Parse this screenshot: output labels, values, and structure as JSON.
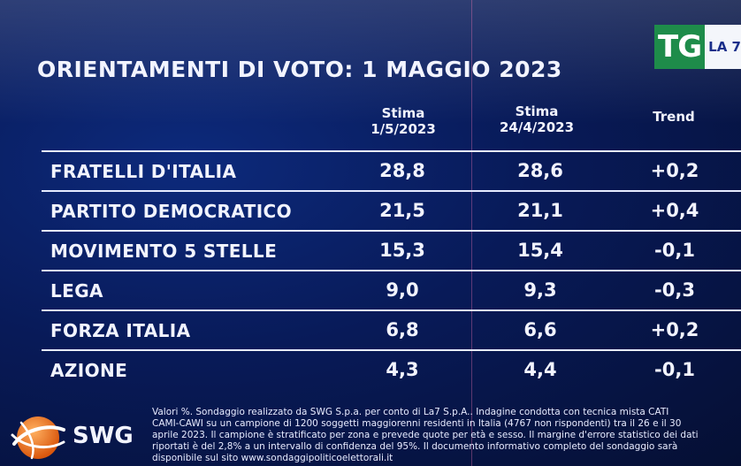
{
  "title": "ORIENTAMENTI DI VOTO: 1 MAGGIO 2023",
  "logo": {
    "tg": "TG",
    "la7": "LA 7"
  },
  "columns": {
    "c1_l1": "Stima",
    "c1_l2": "1/5/2023",
    "c2_l1": "Stima",
    "c2_l2": "24/4/2023",
    "c3": "Trend"
  },
  "rows": [
    {
      "party": "FRATELLI D'ITALIA",
      "v1": "28,8",
      "v2": "28,6",
      "trend": "+0,2"
    },
    {
      "party": "PARTITO DEMOCRATICO",
      "v1": "21,5",
      "v2": "21,1",
      "trend": "+0,4"
    },
    {
      "party": "MOVIMENTO 5 STELLE",
      "v1": "15,3",
      "v2": "15,4",
      "trend": "-0,1"
    },
    {
      "party": "LEGA",
      "v1": "9,0",
      "v2": "9,3",
      "trend": "-0,3"
    },
    {
      "party": "FORZA ITALIA",
      "v1": "6,8",
      "v2": "6,6",
      "trend": "+0,2"
    },
    {
      "party": "AZIONE",
      "v1": "4,3",
      "v2": "4,4",
      "trend": "-0,1"
    }
  ],
  "footer": {
    "brand": "SWG",
    "note_lines": [
      "Valori %. Sondaggio realizzato da SWG S.p.a. per conto di La7 S.p.A.. Indagine condotta con tecnica mista CATI",
      "CAMI-CAWI su un campione di 1200 soggetti maggiorenni residenti in Italia (4767 non rispondenti) tra il 26 e il 30",
      "aprile 2023. Il campione è stratificato per zona e prevede quote per età e sesso. Il margine d'errore statistico dei dati",
      "riportati è del 2,8% a un intervallo di confidenza del 95%. Il documento informativo completo del sondaggio sarà",
      "disponibile sul sito www.sondaggipoliticoelettorali.it"
    ]
  },
  "colors": {
    "background": "#081a58",
    "text": "#f2f4ff",
    "tg_green": "#1e8c4a",
    "swg_orange": "#e8701a"
  }
}
